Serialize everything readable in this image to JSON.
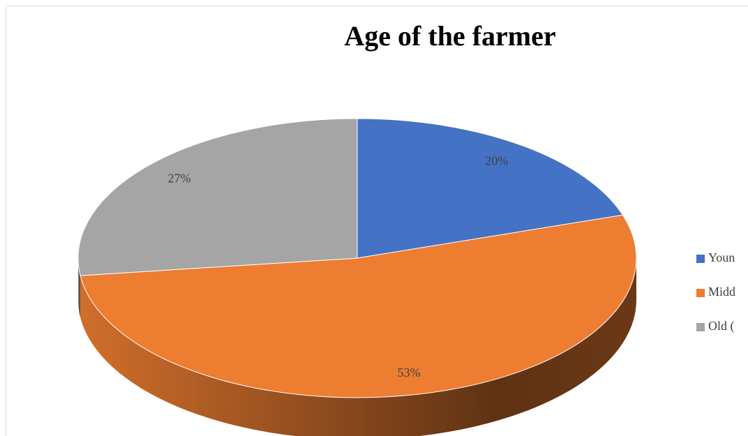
{
  "chart_data": {
    "type": "pie",
    "title": "Age of the farmer",
    "categories": [
      "Youn",
      "Midd",
      "Old ("
    ],
    "values": [
      20,
      53,
      27
    ],
    "value_labels": [
      "20%",
      "53%",
      "27%"
    ],
    "colors": [
      "#4472c4",
      "#ed7d31",
      "#a5a5a5"
    ],
    "legend": "right"
  }
}
